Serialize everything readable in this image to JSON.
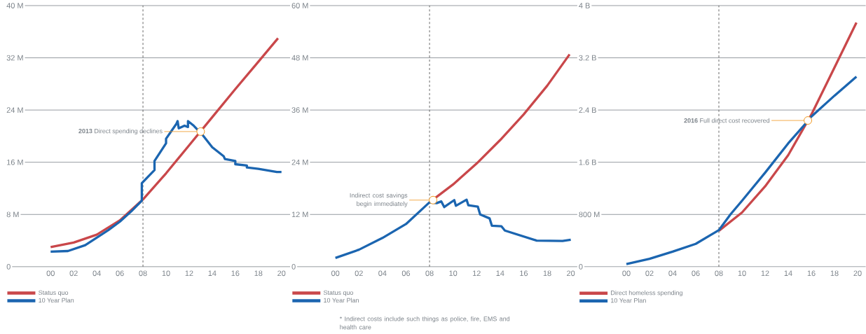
{
  "chart_data": [
    {
      "type": "line",
      "xlim": [
        1996.1,
        2021.1
      ],
      "ylim": [
        0,
        40
      ],
      "xticks": [
        {
          "value": 2000,
          "label": "00"
        },
        {
          "value": 2002,
          "label": "02"
        },
        {
          "value": 2004,
          "label": "04"
        },
        {
          "value": 2006,
          "label": "06"
        },
        {
          "value": 2008,
          "label": "08"
        },
        {
          "value": 2010,
          "label": "10"
        },
        {
          "value": 2012,
          "label": "12"
        },
        {
          "value": 2014,
          "label": "14"
        },
        {
          "value": 2016,
          "label": "16"
        },
        {
          "value": 2018,
          "label": "18"
        },
        {
          "value": 2020,
          "label": "20"
        }
      ],
      "yticks": [
        {
          "value": 0,
          "label": "0"
        },
        {
          "value": 8,
          "label": "8 M"
        },
        {
          "value": 16,
          "label": "16 M"
        },
        {
          "value": 24,
          "label": "24 M"
        },
        {
          "value": 32,
          "label": "32 M"
        },
        {
          "value": 40,
          "label": "40 M"
        }
      ],
      "grid": "y",
      "legend": "bottom",
      "series": [
        {
          "name": "Status quo",
          "color": "#c9474a",
          "x": [
            2000,
            2002,
            2004,
            2006,
            2008,
            2010,
            2012,
            2014,
            2016,
            2018,
            2019.7
          ],
          "values": [
            3.0,
            3.7,
            4.9,
            7.1,
            10.3,
            14.3,
            18.6,
            22.9,
            27.2,
            31.4,
            35.0
          ]
        },
        {
          "name": "10 Year Plan",
          "color": "#1b65b0",
          "x": [
            2000,
            2001.5,
            2003,
            2005,
            2006,
            2007,
            2007.9,
            2007.9,
            2009.0,
            2009.0,
            2010.0,
            2010.0,
            2010.9,
            2011.0,
            2011.1,
            2011.6,
            2011.9,
            2011.9,
            2012.4,
            2013.2,
            2014.0,
            2015.0,
            2015.1,
            2016.0,
            2016.0,
            2017.0,
            2017.0,
            2018.0,
            2019.6,
            2020.0
          ],
          "values": [
            2.3,
            2.4,
            3.3,
            5.6,
            6.9,
            8.5,
            10.1,
            12.8,
            14.8,
            16.2,
            18.9,
            19.6,
            21.9,
            22.3,
            21.2,
            21.6,
            21.4,
            22.3,
            21.6,
            20.1,
            18.3,
            16.9,
            16.5,
            16.2,
            15.7,
            15.5,
            15.2,
            15.0,
            14.5,
            14.5
          ]
        }
      ],
      "ref_lines": [
        {
          "axis": "x",
          "value": 2008,
          "color": "#555555",
          "line_style": "dashed"
        }
      ],
      "annotations": [
        {
          "text": "**2013** Direct spending declines",
          "x": 2013,
          "y": 20.7
        }
      ]
    },
    {
      "type": "line",
      "xlim": [
        1996.2,
        2020.6
      ],
      "ylim": [
        0,
        60
      ],
      "xticks": [
        {
          "value": 2000,
          "label": "00"
        },
        {
          "value": 2002,
          "label": "02"
        },
        {
          "value": 2004,
          "label": "04"
        },
        {
          "value": 2006,
          "label": "06"
        },
        {
          "value": 2008,
          "label": "08"
        },
        {
          "value": 2010,
          "label": "10"
        },
        {
          "value": 2012,
          "label": "12"
        },
        {
          "value": 2014,
          "label": "14"
        },
        {
          "value": 2016,
          "label": "16"
        },
        {
          "value": 2018,
          "label": "18"
        },
        {
          "value": 2020,
          "label": "20"
        }
      ],
      "yticks": [
        {
          "value": 0,
          "label": "0"
        },
        {
          "value": 12,
          "label": "12 M"
        },
        {
          "value": 24,
          "label": "24 M"
        },
        {
          "value": 36,
          "label": "36 M"
        },
        {
          "value": 48,
          "label": "48 M"
        },
        {
          "value": 60,
          "label": "60 M"
        }
      ],
      "grid": "y",
      "legend": "bottom",
      "series": [
        {
          "name": "Status quo",
          "color": "#c9474a",
          "x": [
            2008,
            2010,
            2012,
            2014,
            2016,
            2018,
            2019.9
          ],
          "values": [
            14.8,
            18.9,
            23.7,
            29.1,
            35.0,
            41.6,
            48.8
          ]
        },
        {
          "name": "10 Year Plan",
          "color": "#1b65b0",
          "x": [
            2000,
            2002,
            2004,
            2006,
            2008,
            2008.6,
            2009.0,
            2009.25,
            2010.1,
            2010.24,
            2011.15,
            2011.3,
            2012.1,
            2012.3,
            2013.1,
            2013.3,
            2014.1,
            2014.4,
            2017.1,
            2019.3,
            2020.0
          ],
          "values": [
            2.0,
            3.9,
            6.6,
            9.8,
            14.8,
            14.6,
            15.0,
            13.7,
            15.3,
            14.0,
            15.4,
            14.1,
            13.8,
            12.0,
            11.1,
            9.4,
            9.3,
            8.3,
            6.0,
            5.9,
            6.2
          ]
        }
      ],
      "ref_lines": [
        {
          "axis": "x",
          "value": 2008,
          "color": "#555555",
          "line_style": "dashed"
        }
      ],
      "annotations": [
        {
          "text": "Indirect cost savings begin immediately",
          "x": 2008.3,
          "y": 15.3
        },
        "* Indirect costs include such things as police, fire, EMS and health care"
      ]
    },
    {
      "type": "line",
      "xlim": [
        1995.8,
        2020.7
      ],
      "ylim": [
        0,
        4000000000
      ],
      "xticks": [
        {
          "value": 2000,
          "label": "00"
        },
        {
          "value": 2002,
          "label": "02"
        },
        {
          "value": 2004,
          "label": "04"
        },
        {
          "value": 2006,
          "label": "06"
        },
        {
          "value": 2008,
          "label": "08"
        },
        {
          "value": 2010,
          "label": "10"
        },
        {
          "value": 2012,
          "label": "12"
        },
        {
          "value": 2014,
          "label": "14"
        },
        {
          "value": 2016,
          "label": "16"
        },
        {
          "value": 2018,
          "label": "18"
        },
        {
          "value": 2020,
          "label": "20"
        }
      ],
      "yticks": [
        {
          "value": 0,
          "label": "0"
        },
        {
          "value": 800000000,
          "label": "800 M"
        },
        {
          "value": 1600000000,
          "label": "1.6 B"
        },
        {
          "value": 2400000000,
          "label": "2.4 B"
        },
        {
          "value": 3200000000,
          "label": "3.2 B"
        },
        {
          "value": 4000000000,
          "label": "4 B"
        }
      ],
      "grid": "y",
      "legend": "bottom",
      "series": [
        {
          "name": "Direct homeless spending",
          "color": "#c9474a",
          "x": [
            2008,
            2010,
            2012,
            2014,
            2016,
            2018,
            2019.9
          ],
          "values": [
            550000000,
            830000000,
            1230000000,
            1710000000,
            2330000000,
            3050000000,
            3740000000
          ]
        },
        {
          "name": "10 Year Plan",
          "color": "#1b65b0",
          "x": [
            2000,
            2002,
            2004,
            2006,
            2008,
            2009,
            2010,
            2012,
            2014,
            2015.5,
            2016,
            2018,
            2019.9
          ],
          "values": [
            40000000,
            120000000,
            230000000,
            350000000,
            560000000,
            800000000,
            1010000000,
            1440000000,
            1890000000,
            2190000000,
            2300000000,
            2620000000,
            2910000000
          ]
        }
      ],
      "ref_lines": [
        {
          "axis": "x",
          "value": 2008,
          "color": "#555555",
          "line_style": "dashed"
        }
      ],
      "annotations": [
        {
          "text": "**2016** Full direct cost recovered",
          "x": 2015.7,
          "y": 2240000000
        }
      ]
    }
  ]
}
